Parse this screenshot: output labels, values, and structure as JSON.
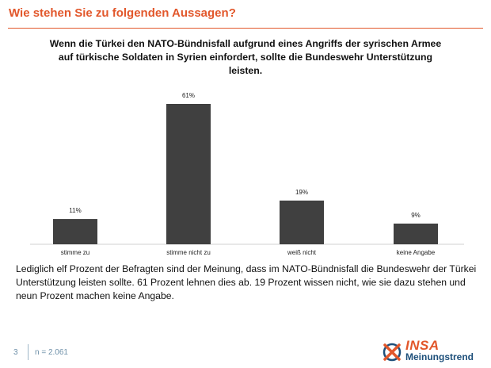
{
  "header": {
    "title": "Wie stehen Sie zu folgenden Aussagen?"
  },
  "question": "Wenn die Türkei den NATO-Bündnisfall aufgrund eines Angriffs der syrischen Armee auf türkische Soldaten in Syrien einfordert, sollte die Bundeswehr Unterstützung leisten.",
  "chart_data": {
    "type": "bar",
    "title": "Wenn die Türkei den NATO-Bündnisfall aufgrund eines Angriffs der syrischen Armee auf türkische Soldaten in Syrien einfordert, sollte die Bundeswehr Unterstützung leisten.",
    "categories": [
      "stimme zu",
      "stimme nicht zu",
      "weiß nicht",
      "keine Angabe"
    ],
    "values": [
      11,
      61,
      19,
      9
    ],
    "value_labels": [
      "11%",
      "61%",
      "19%",
      "9%"
    ],
    "xlabel": "",
    "ylabel": "",
    "ylim": [
      0,
      61
    ],
    "grid": false,
    "bar_color": "#404040"
  },
  "summary": "Lediglich elf Prozent der Befragten sind der Meinung, dass im NATO-Bündnisfall die Bundeswehr der Türkei Unterstützung leisten sollte. 61 Prozent lehnen dies ab. 19 Prozent wissen nicht, wie sie dazu stehen und neun Prozent machen keine Angabe.",
  "footer": {
    "page_number": "3",
    "sample_size": "n = 2.061",
    "logo_brand": "INSA",
    "logo_sub": "Meinungstrend"
  },
  "colors": {
    "accent": "#e2572b",
    "brand_blue": "#1d4f7a",
    "bar": "#404040"
  }
}
